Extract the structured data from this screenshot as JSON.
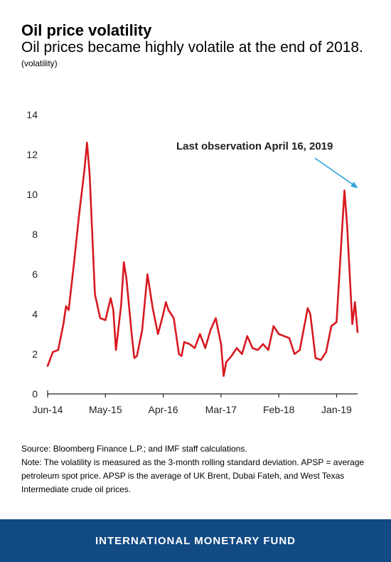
{
  "header": {
    "title": "Oil price volatility",
    "subtitle": "Oil prices became highly volatile at the end of 2018.",
    "unit": "(volatility)"
  },
  "footnotes": {
    "source": "Source: Bloomberg Finance L.P.; and IMF staff calculations.",
    "note": "Note: The volatility is measured as the 3-month rolling standard deviation. APSP = average petroleum spot price. APSP is the average of UK Brent, Dubai Fateh, and West Texas Intermediate crude oil prices."
  },
  "footer": {
    "org": "INTERNATIONAL MONETARY FUND"
  },
  "colors": {
    "series": "#d71920",
    "arrow": "#29a3dd",
    "footer_bg": "#124a84"
  },
  "chart_data": {
    "type": "line",
    "title": "",
    "xlabel": "",
    "ylabel": "",
    "ylim": [
      0,
      14
    ],
    "xlim": [
      0,
      59
    ],
    "x_ticks": [
      0,
      11,
      22,
      33,
      44,
      55
    ],
    "x_tick_labels": [
      "Jun-14",
      "May-15",
      "Apr-16",
      "Mar-17",
      "Feb-18",
      "Jan-19"
    ],
    "y_ticks": [
      0,
      2,
      4,
      6,
      8,
      10,
      12,
      14
    ],
    "y_tick_labels": [
      "0",
      "2",
      "4",
      "6",
      "8",
      "10",
      "12",
      "14"
    ],
    "grid": false,
    "annotation": {
      "text": "Last observation April 16, 2019",
      "arrow": true
    },
    "series": [
      {
        "points": [
          [
            0,
            1.4
          ],
          [
            1,
            2.1
          ],
          [
            2,
            2.2
          ],
          [
            3,
            3.5
          ],
          [
            3.5,
            4.4
          ],
          [
            4,
            4.2
          ],
          [
            5,
            6.5
          ],
          [
            6,
            9.0
          ],
          [
            7,
            11.2
          ],
          [
            7.5,
            12.6
          ],
          [
            8,
            11.0
          ],
          [
            9,
            5.0
          ],
          [
            10,
            3.8
          ],
          [
            11,
            3.7
          ],
          [
            12,
            4.8
          ],
          [
            12.5,
            4.2
          ],
          [
            13,
            2.2
          ],
          [
            14,
            4.5
          ],
          [
            14.5,
            6.6
          ],
          [
            15,
            5.8
          ],
          [
            16,
            3.0
          ],
          [
            16.5,
            1.8
          ],
          [
            17,
            1.9
          ],
          [
            18,
            3.2
          ],
          [
            19,
            6.0
          ],
          [
            20,
            4.3
          ],
          [
            21,
            3.0
          ],
          [
            22,
            4.0
          ],
          [
            22.5,
            4.6
          ],
          [
            23,
            4.2
          ],
          [
            24,
            3.8
          ],
          [
            25,
            2.0
          ],
          [
            25.5,
            1.9
          ],
          [
            26,
            2.6
          ],
          [
            27,
            2.5
          ],
          [
            28,
            2.3
          ],
          [
            29,
            3.0
          ],
          [
            30,
            2.3
          ],
          [
            31,
            3.2
          ],
          [
            32,
            3.8
          ],
          [
            33,
            2.5
          ],
          [
            33.5,
            0.9
          ],
          [
            34,
            1.6
          ],
          [
            35,
            1.9
          ],
          [
            36,
            2.3
          ],
          [
            37,
            2.0
          ],
          [
            38,
            2.9
          ],
          [
            39,
            2.3
          ],
          [
            40,
            2.2
          ],
          [
            41,
            2.5
          ],
          [
            42,
            2.2
          ],
          [
            43,
            3.4
          ],
          [
            44,
            3.0
          ],
          [
            45,
            2.9
          ],
          [
            46,
            2.8
          ],
          [
            47,
            2.0
          ],
          [
            48,
            2.2
          ],
          [
            49,
            3.6
          ],
          [
            49.5,
            4.3
          ],
          [
            50,
            4.0
          ],
          [
            51,
            1.8
          ],
          [
            52,
            1.7
          ],
          [
            53,
            2.1
          ],
          [
            54,
            3.4
          ],
          [
            55,
            3.6
          ],
          [
            56,
            8.0
          ],
          [
            56.5,
            10.2
          ],
          [
            57,
            8.5
          ],
          [
            58,
            3.5
          ],
          [
            58.5,
            4.6
          ],
          [
            59,
            3.1
          ]
        ]
      }
    ]
  }
}
